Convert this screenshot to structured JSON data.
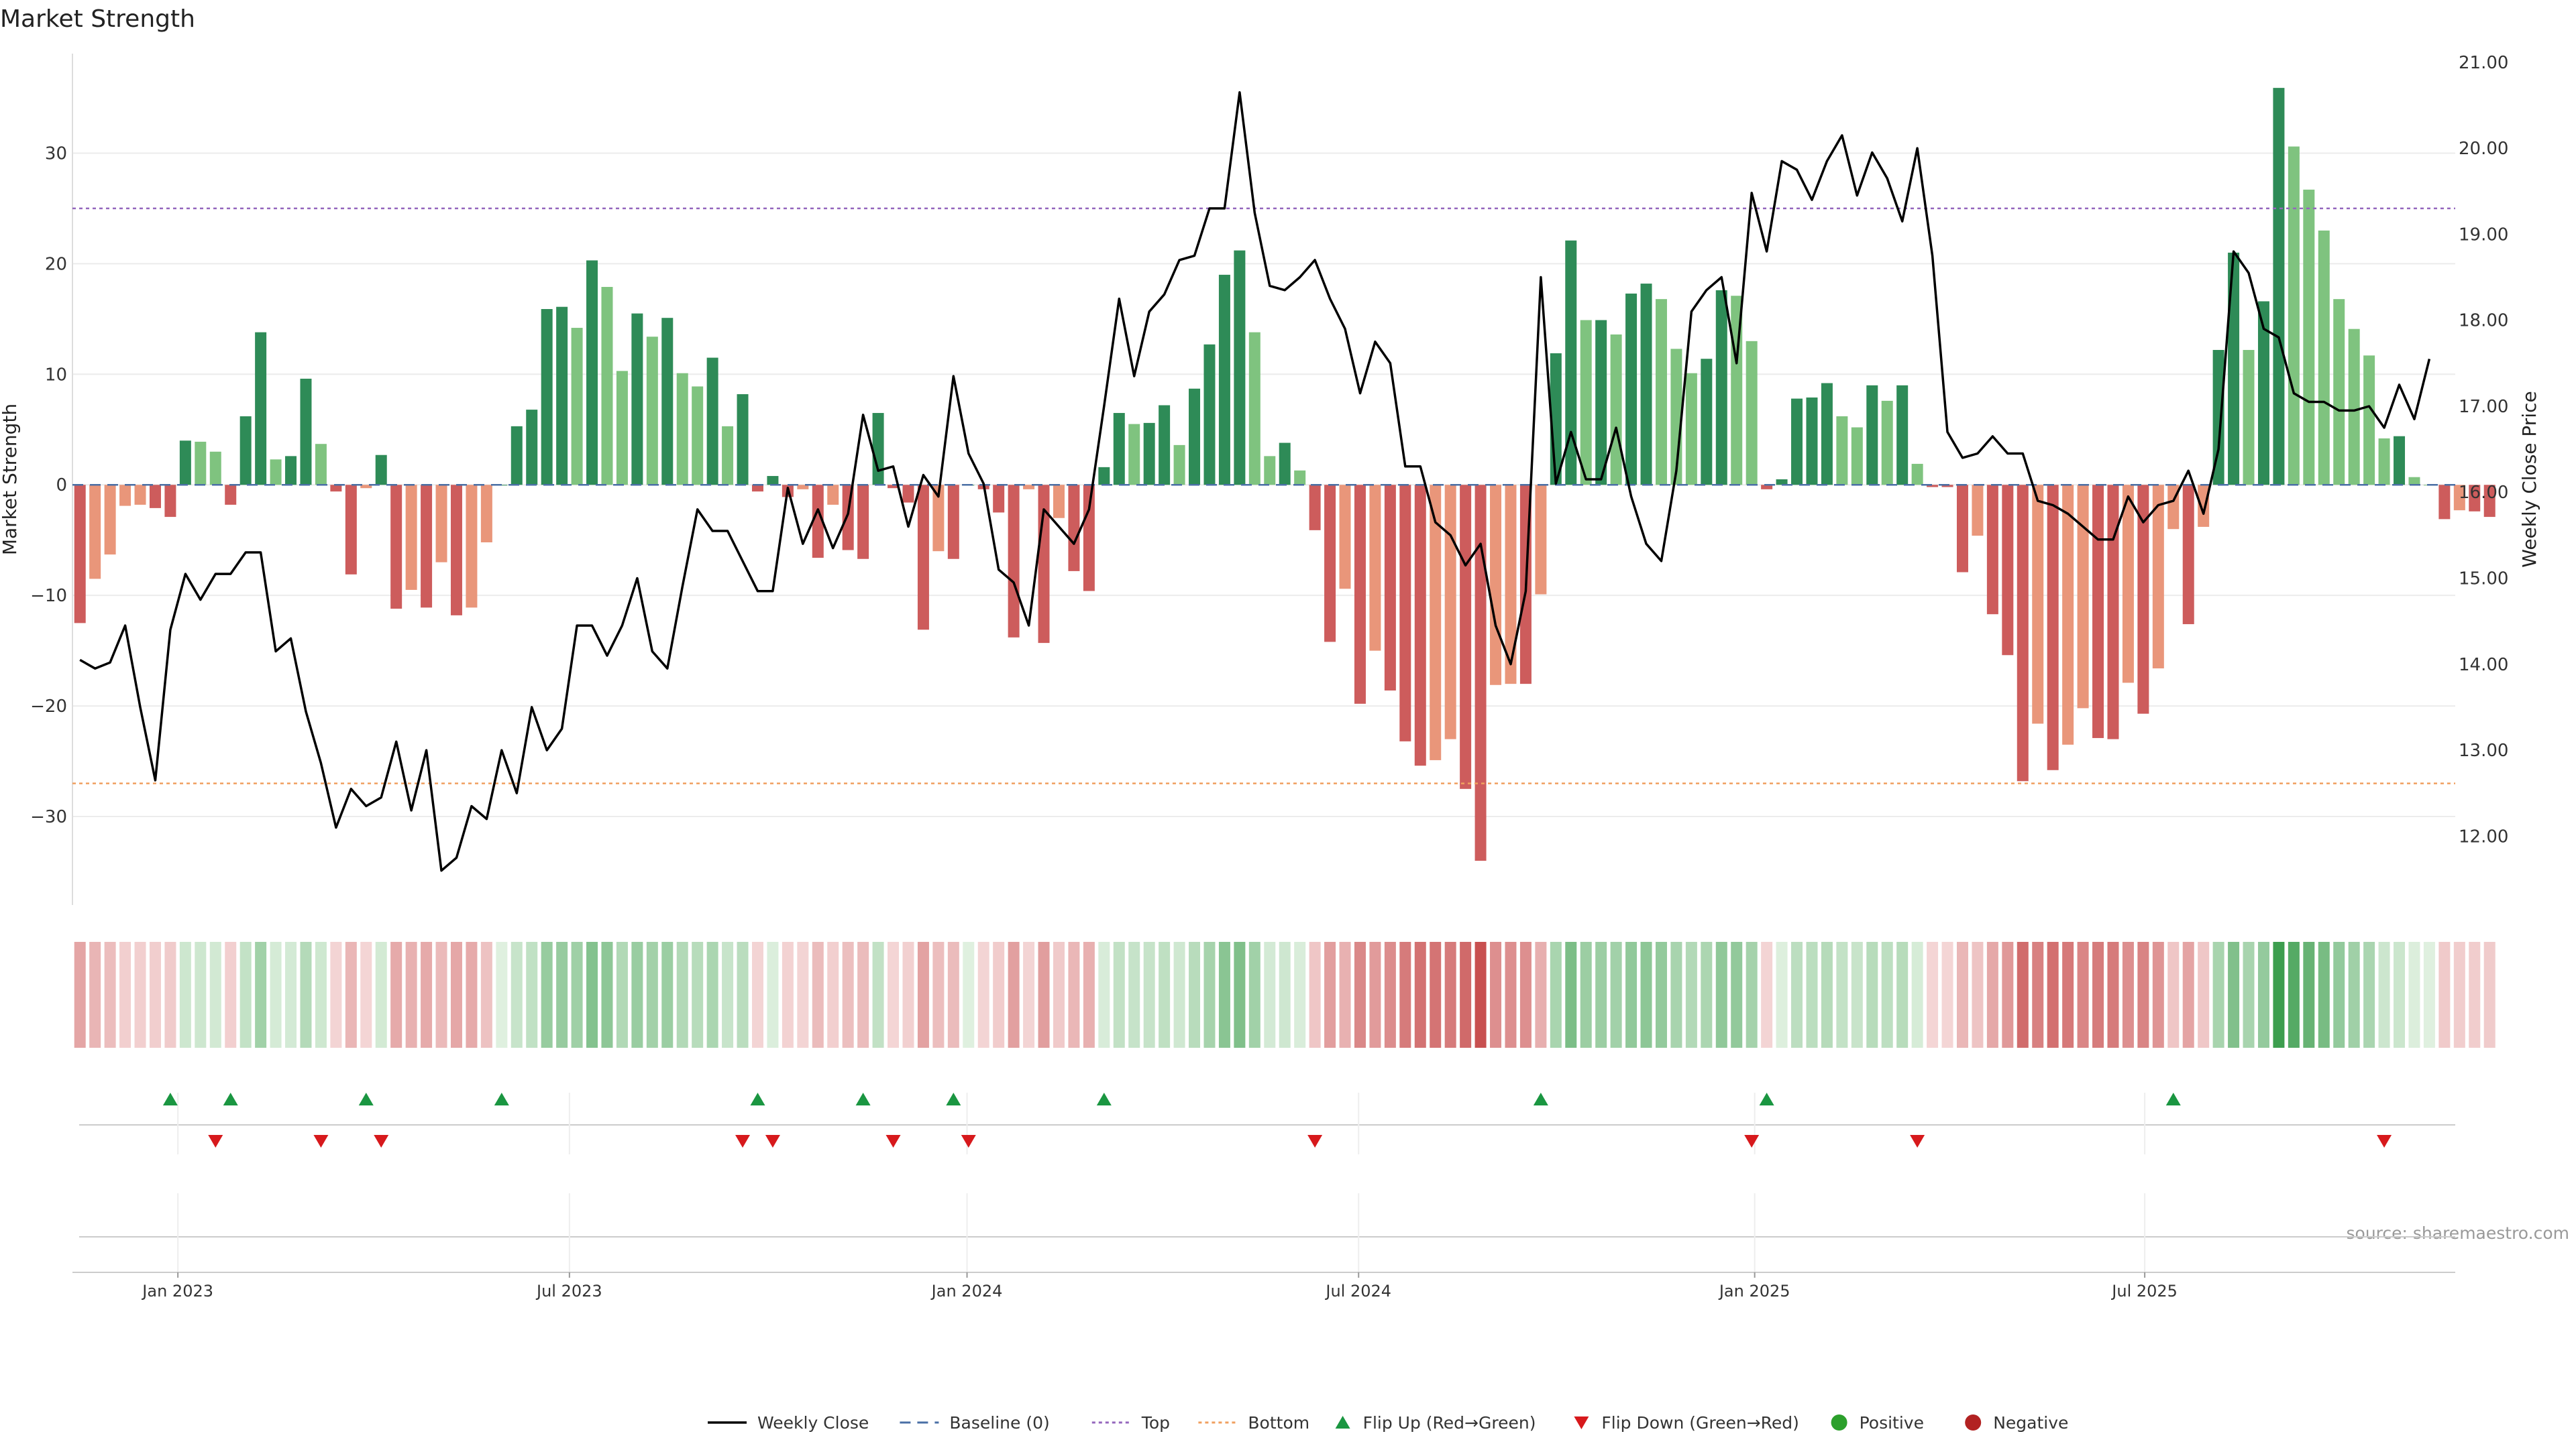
{
  "chart_data": {
    "type": "bar",
    "title": "Market Strength",
    "ylabel": "Market Strength",
    "y2label": "Weekly Close Price",
    "source": "source: sharemaestro.com",
    "ylim": [
      -38,
      39
    ],
    "y2lim": [
      11.2,
      21.1
    ],
    "yticks": [
      -30,
      -20,
      -10,
      0,
      10,
      20,
      30
    ],
    "yticklabels": [
      "−30",
      "−20",
      "−10",
      "0",
      "10",
      "20",
      "30"
    ],
    "y2ticks": [
      12,
      13,
      14,
      15,
      16,
      17,
      18,
      19,
      20,
      21
    ],
    "y2ticklabels": [
      "12.00",
      "13.00",
      "14.00",
      "15.00",
      "16.00",
      "17.00",
      "18.00",
      "19.00",
      "20.00",
      "21.00"
    ],
    "xticks": [
      {
        "label": "Jan 2023",
        "week": 7
      },
      {
        "label": "Jul 2023",
        "week": 33
      },
      {
        "label": "Jan 2024",
        "week": 59.4
      },
      {
        "label": "Jul 2024",
        "week": 85.4
      },
      {
        "label": "Jan 2025",
        "week": 111.7
      },
      {
        "label": "Jul 2025",
        "week": 137.6
      }
    ],
    "top_line": 25,
    "bottom_line": -27,
    "strength": [
      -12.5,
      -8.5,
      -6.3,
      -1.9,
      -1.8,
      -2.1,
      -2.9,
      4.0,
      3.9,
      3.0,
      -1.8,
      6.2,
      13.8,
      2.3,
      2.6,
      9.6,
      3.7,
      -0.6,
      -8.1,
      -0.3,
      2.7,
      -11.2,
      -9.5,
      -11.1,
      -7.0,
      -11.8,
      -11.1,
      -5.2,
      0,
      5.3,
      6.8,
      15.9,
      16.1,
      14.2,
      20.3,
      17.9,
      10.3,
      15.5,
      13.4,
      15.1,
      10.1,
      8.9,
      11.5,
      5.3,
      8.2,
      -0.6,
      0.8,
      -1.1,
      -0.4,
      -6.6,
      -1.8,
      -5.9,
      -6.7,
      6.5,
      -0.3,
      -1.6,
      -13.1,
      -6.0,
      -6.7,
      0,
      -0.4,
      -2.5,
      -13.8,
      -0.4,
      -14.3,
      -3.0,
      -7.8,
      -9.6,
      1.6,
      6.5,
      5.5,
      5.6,
      7.2,
      3.6,
      8.7,
      12.7,
      19.0,
      21.2,
      13.8,
      2.6,
      3.8,
      1.3,
      -4.1,
      -14.2,
      -9.4,
      -19.8,
      -15.0,
      -18.6,
      -23.2,
      -25.4,
      -24.9,
      -23.0,
      -27.5,
      -34.0,
      -18.1,
      -18.0,
      -18.0,
      -9.9,
      11.9,
      22.1,
      14.9,
      14.9,
      13.6,
      17.3,
      18.2,
      16.8,
      12.3,
      10.1,
      11.4,
      17.6,
      17.1,
      13.0,
      -0.4,
      0.5,
      7.8,
      7.9,
      9.2,
      6.2,
      5.2,
      9.0,
      7.6,
      9.0,
      1.9,
      -0.2,
      -0.2,
      -7.9,
      -4.6,
      -11.7,
      -15.4,
      -26.8,
      -21.6,
      -25.8,
      -23.5,
      -20.2,
      -22.9,
      -23.0,
      -17.9,
      -20.7,
      -16.6,
      -4.0,
      -12.6,
      -3.8,
      12.2,
      21.0,
      12.2,
      16.6,
      35.9,
      30.6,
      26.7,
      23.0,
      16.8,
      14.1,
      11.7,
      4.2,
      4.4,
      0.7,
      0,
      -3.1,
      -2.3,
      -2.4,
      -2.9
    ],
    "weekly_close": [
      14.05,
      13.95,
      14.02,
      14.45,
      13.5,
      12.65,
      14.4,
      15.05,
      14.75,
      15.05,
      15.05,
      15.3,
      15.3,
      14.15,
      14.3,
      13.45,
      12.85,
      12.1,
      12.55,
      12.35,
      12.45,
      13.1,
      12.3,
      13.0,
      11.6,
      11.75,
      12.35,
      12.2,
      13.0,
      12.5,
      13.5,
      13.0,
      13.25,
      14.45,
      14.45,
      14.1,
      14.45,
      15.0,
      14.15,
      13.95,
      14.9,
      15.8,
      15.55,
      15.55,
      15.2,
      14.85,
      14.85,
      16.05,
      15.4,
      15.8,
      15.35,
      15.75,
      16.9,
      16.25,
      16.3,
      15.6,
      16.2,
      15.95,
      17.35,
      16.45,
      16.1,
      15.1,
      14.95,
      14.45,
      15.8,
      15.6,
      15.4,
      15.8,
      17.0,
      18.25,
      17.35,
      18.1,
      18.3,
      18.7,
      18.75,
      19.3,
      19.3,
      20.65,
      19.25,
      18.4,
      18.35,
      18.5,
      18.7,
      18.25,
      17.9,
      17.15,
      17.75,
      17.5,
      16.3,
      16.3,
      15.65,
      15.5,
      15.15,
      15.4,
      14.45,
      14.0,
      14.85,
      18.5,
      16.1,
      16.7,
      16.15,
      16.15,
      16.75,
      15.95,
      15.4,
      15.2,
      16.25,
      18.1,
      18.35,
      18.5,
      17.5,
      19.48,
      18.8,
      19.85,
      19.75,
      19.4,
      19.85,
      20.15,
      19.45,
      19.95,
      19.65,
      19.15,
      20.0,
      18.75,
      16.7,
      16.4,
      16.45,
      16.65,
      16.45,
      16.45,
      15.9,
      15.85,
      15.75,
      15.6,
      15.45,
      15.45,
      15.95,
      15.65,
      15.85,
      15.9,
      16.25,
      15.75,
      16.5,
      18.8,
      18.55,
      17.9,
      17.8,
      17.15,
      17.05,
      17.05,
      16.95,
      16.95,
      17.0,
      16.75,
      17.25,
      16.85,
      17.55
    ],
    "flip_up_weeks": [
      6,
      10,
      19,
      28,
      45,
      52,
      58,
      68,
      97,
      112,
      139
    ],
    "flip_down_weeks": [
      9,
      16,
      20,
      44,
      46,
      54,
      59,
      82,
      111,
      122,
      153
    ],
    "legend": [
      {
        "label": "Weekly Close",
        "kind": "line",
        "color": "#000000"
      },
      {
        "label": "Baseline (0)",
        "kind": "dashed",
        "color": "#4a6fa5"
      },
      {
        "label": "Top",
        "kind": "dotted",
        "color": "#9467bd"
      },
      {
        "label": "Bottom",
        "kind": "dotted",
        "color": "#f0a060"
      },
      {
        "label": "Flip Up (Red→Green)",
        "kind": "tri-up",
        "color": "#1a9641"
      },
      {
        "label": "Flip Down (Green→Red)",
        "kind": "tri-down",
        "color": "#d7191c"
      },
      {
        "label": "Positive",
        "kind": "dot",
        "color": "#2ca02c"
      },
      {
        "label": "Negative",
        "kind": "dot",
        "color": "#b22222"
      }
    ],
    "colors": {
      "pos_strong": "#2e8b57",
      "pos_weak": "#7fc37f",
      "neg_strong": "#cd5c5c",
      "neg_weak": "#e9967a",
      "close_line": "#000000",
      "baseline": "#4a6fa5",
      "top": "#9467bd",
      "bottom": "#f0a060",
      "flip_up": "#1a9641",
      "flip_down": "#d7191c"
    }
  }
}
